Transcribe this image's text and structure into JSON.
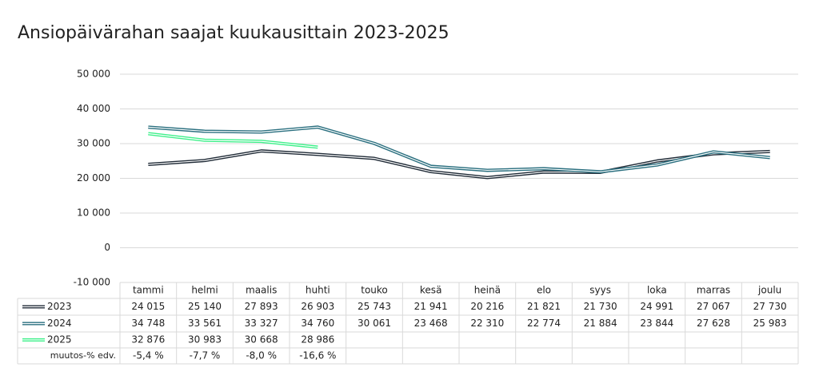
{
  "chart_data": {
    "type": "line",
    "title": "Ansiopäivärahan saajat kuukausittain 2023-2025",
    "categories": [
      "tammi",
      "helmi",
      "maalis",
      "huhti",
      "touko",
      "kesä",
      "heinä",
      "elo",
      "syys",
      "loka",
      "marras",
      "joulu"
    ],
    "series": [
      {
        "name": "2023",
        "color": "#1f2a36",
        "values": [
          24015,
          25140,
          27893,
          26903,
          25743,
          21941,
          20216,
          21821,
          21730,
          24991,
          27067,
          27730
        ],
        "value_labels": [
          "24 015",
          "25 140",
          "27 893",
          "26 903",
          "25 743",
          "21 941",
          "20 216",
          "21 821",
          "21 730",
          "24 991",
          "27 067",
          "27 730"
        ]
      },
      {
        "name": "2024",
        "color": "#2a6f7f",
        "values": [
          34748,
          33561,
          33327,
          34760,
          30061,
          23468,
          22310,
          22774,
          21884,
          23844,
          27628,
          25983
        ],
        "value_labels": [
          "34 748",
          "33 561",
          "33 327",
          "34 760",
          "30 061",
          "23 468",
          "22 310",
          "22 774",
          "21 884",
          "23 844",
          "27 628",
          "25 983"
        ]
      },
      {
        "name": "2025",
        "color": "#3ef08a",
        "values": [
          32876,
          30983,
          30668,
          28986,
          null,
          null,
          null,
          null,
          null,
          null,
          null,
          null
        ],
        "value_labels": [
          "32 876",
          "30 983",
          "30 668",
          "28 986",
          null,
          null,
          null,
          null,
          null,
          null,
          null,
          null
        ]
      }
    ],
    "change_row": {
      "name": "muutos-% edv.",
      "labels": [
        "-5,4 %",
        "-7,7 %",
        "-8,0 %",
        "-16,6 %",
        null,
        null,
        null,
        null,
        null,
        null,
        null,
        null
      ]
    },
    "ylim": [
      -10000,
      50000
    ],
    "yticks": [
      {
        "value": -10000,
        "label": "-10 000"
      },
      0,
      {
        "value": 10000,
        "label": "10 000"
      },
      {
        "value": 20000,
        "label": "20 000"
      },
      {
        "value": 30000,
        "label": "30 000"
      },
      {
        "value": 40000,
        "label": "40 000"
      },
      {
        "value": 50000,
        "label": "50 000"
      }
    ],
    "grid": true
  }
}
